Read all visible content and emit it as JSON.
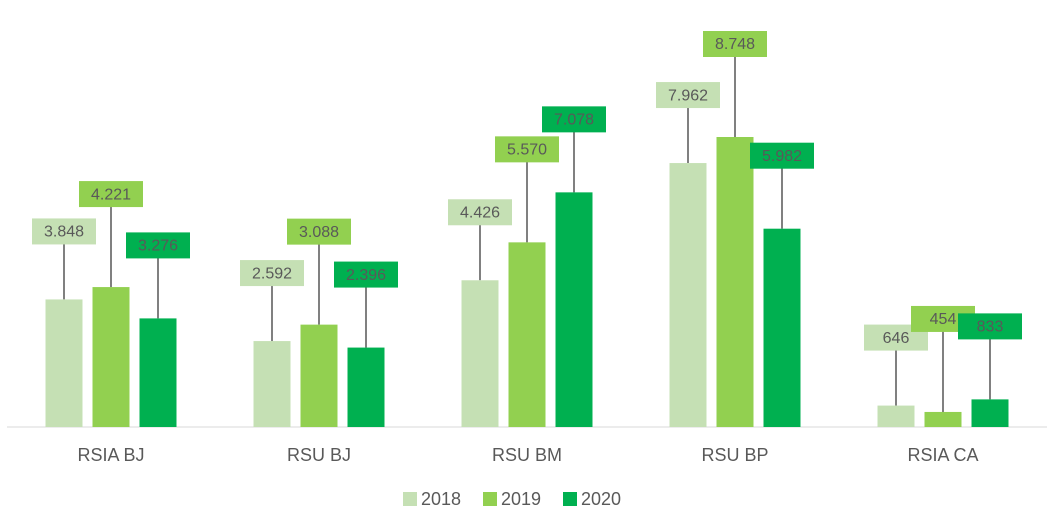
{
  "chart_data": {
    "type": "bar",
    "categories": [
      "RSIA BJ",
      "RSU BJ",
      "RSU BM",
      "RSU BP",
      "RSIA CA"
    ],
    "series": [
      {
        "name": "2018",
        "color": "#c5e0b4",
        "values": [
          3848,
          2592,
          4426,
          7962,
          646
        ],
        "value_labels": [
          "3.848",
          "2.592",
          "4.426",
          "7.962",
          "646"
        ]
      },
      {
        "name": "2019",
        "color": "#92d050",
        "values": [
          4221,
          3088,
          5570,
          8748,
          454
        ],
        "value_labels": [
          "4.221",
          "3.088",
          "5.570",
          "8.748",
          "454"
        ]
      },
      {
        "name": "2020",
        "color": "#00b050",
        "values": [
          3276,
          2396,
          7078,
          5982,
          833
        ],
        "value_labels": [
          "3.276",
          "2.396",
          "7.078",
          "5.982",
          "833"
        ]
      }
    ],
    "legend": "bottom"
  }
}
